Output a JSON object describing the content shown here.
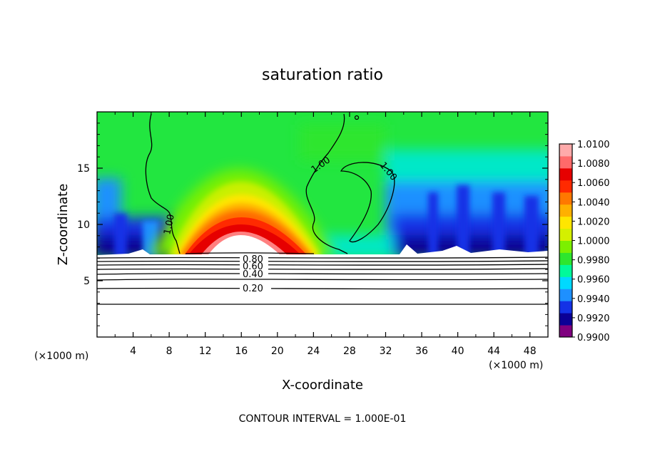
{
  "chart_data": {
    "type": "heatmap",
    "title": "saturation ratio",
    "xlabel": "X-coordinate",
    "ylabel": "Z-coordinate",
    "x_unit_label": "(×1000 m)",
    "xlim": [
      0,
      50
    ],
    "ylim": [
      0,
      20
    ],
    "x_ticks": [
      "4",
      "8",
      "12",
      "16",
      "20",
      "24",
      "28",
      "32",
      "36",
      "40",
      "44",
      "48"
    ],
    "y_ticks": [
      "5",
      "10",
      "15"
    ],
    "colorbar": {
      "min": 0.99,
      "max": 1.01,
      "ticks": [
        "1.0100",
        "1.0080",
        "1.0060",
        "1.0040",
        "1.0020",
        "1.0000",
        "0.9980",
        "0.9960",
        "0.9940",
        "0.9920",
        "0.9900"
      ],
      "colors": [
        "#7f007f",
        "#0b0096",
        "#1432e6",
        "#1e90ff",
        "#00d9ff",
        "#00fa9a",
        "#2ee62e",
        "#7cf000",
        "#d4f000",
        "#ffe600",
        "#ffb000",
        "#ff7800",
        "#ff2a00",
        "#e60000",
        "#ff6a6a",
        "#ffaaaa"
      ]
    },
    "contour_labels": [
      "1.00",
      "1.00",
      "1.00",
      "0.80",
      "0.60",
      "0.40",
      "0.20"
    ],
    "contour_interval_text": "CONTOUR INTERVAL = 1.000E-01",
    "features": {
      "boundary_z": 7.3,
      "plume_center_x": 15.5,
      "plume_top_z": 15.2
    }
  }
}
